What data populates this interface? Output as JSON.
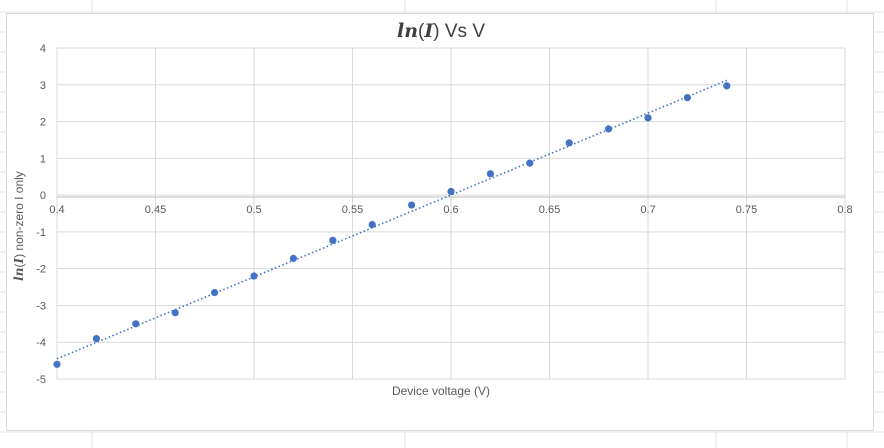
{
  "colors": {
    "point": "#4472c4",
    "trendline": "#4472c4",
    "gridline": "#d9d9d9",
    "axis_text": "#595959",
    "title_text": "#404040"
  },
  "chart_data": {
    "type": "scatter",
    "title_prefix": "ln",
    "title_paren_open": "(",
    "title_var": "I",
    "title_paren_close": ")",
    "title_suffix": " Vs V",
    "xlabel": "Device voltage (V)",
    "ylabel_prefix": "ln",
    "ylabel_paren_open": "(",
    "ylabel_var": "I",
    "ylabel_paren_close": ")",
    "ylabel_suffix": " non-zero I only",
    "xlim": [
      0.4,
      0.8
    ],
    "ylim": [
      -5,
      4
    ],
    "x_ticks": [
      "0.4",
      "0.45",
      "0.5",
      "0.55",
      "0.6",
      "0.65",
      "0.7",
      "0.75",
      "0.8"
    ],
    "y_ticks": [
      "4",
      "3",
      "2",
      "1",
      "0",
      "-1",
      "-2",
      "-3",
      "-4",
      "-5"
    ],
    "grid": true,
    "legend": "none",
    "series": [
      {
        "x": [
          0.4,
          0.42,
          0.44,
          0.46,
          0.48,
          0.5,
          0.52,
          0.54,
          0.56,
          0.58,
          0.6,
          0.62,
          0.64,
          0.66,
          0.68,
          0.7,
          0.72,
          0.74
        ],
        "y": [
          -4.6,
          -3.9,
          -3.5,
          -3.2,
          -2.65,
          -2.2,
          -1.72,
          -1.23,
          -0.8,
          -0.27,
          0.1,
          0.58,
          0.87,
          1.42,
          1.8,
          2.1,
          2.65,
          2.97
        ]
      }
    ],
    "trendline": {
      "type": "linear",
      "style": "dotted",
      "x": [
        0.4,
        0.74
      ],
      "y": [
        -4.45,
        3.12
      ]
    }
  }
}
